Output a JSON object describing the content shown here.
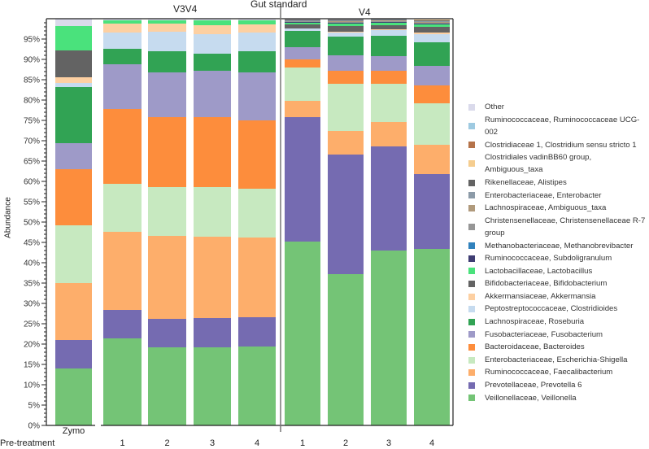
{
  "chart_data": {
    "type": "bar",
    "stacked": true,
    "ylabel": "Abundance",
    "ylim": [
      0,
      100
    ],
    "ytick_labels": [
      "0%",
      "5%",
      "10%",
      "15%",
      "20%",
      "25%",
      "30%",
      "35%",
      "40%",
      "45%",
      "50%",
      "55%",
      "60%",
      "65%",
      "70%",
      "75%",
      "80%",
      "85%",
      "90%",
      "95%"
    ],
    "group_labels": {
      "top_center": "Gut standard",
      "v3v4": "V3V4",
      "v4": "V4"
    },
    "row_label": "Pre-treatment",
    "categories": [
      "Zymo",
      "1",
      "2",
      "3",
      "4",
      "1",
      "2",
      "3",
      "4"
    ],
    "series": [
      {
        "name": "Veillonellaceae, Veillonella",
        "color": "#74c476",
        "values": [
          14,
          21.4,
          19.2,
          19.2,
          19.4,
          45.2,
          37.2,
          43,
          43.4
        ]
      },
      {
        "name": "Prevotellaceae, Prevotella 6",
        "color": "#756bb1",
        "values": [
          7,
          7,
          7,
          7.2,
          7.2,
          30.6,
          29.4,
          25.6,
          18.4
        ]
      },
      {
        "name": "Ruminococcaceae, Faecalibacterium",
        "color": "#fdae6b",
        "values": [
          14,
          19.2,
          20.4,
          20,
          19.6,
          4,
          5.8,
          6,
          7.2
        ]
      },
      {
        "name": "Enterobacteriaceae, Escherichia-Shigella",
        "color": "#c7e9c0",
        "values": [
          14.2,
          11.8,
          12,
          12.2,
          12,
          8.2,
          11.6,
          9.4,
          10.2
        ]
      },
      {
        "name": "Bacteroidaceae, Bacteroides",
        "color": "#fd8d3c",
        "values": [
          13.8,
          18.4,
          17.2,
          17.2,
          16.8,
          2,
          3.2,
          3.2,
          4.4
        ]
      },
      {
        "name": "Fusobacteriaceae, Fusobacterium",
        "color": "#9e9ac8",
        "values": [
          6.4,
          11,
          11,
          11.4,
          11.8,
          3,
          3.8,
          3.6,
          4.8
        ]
      },
      {
        "name": "Lachnospiraceae, Roseburia",
        "color": "#31a354",
        "values": [
          13.8,
          3.8,
          5.2,
          4.2,
          5.2,
          4,
          4.6,
          5,
          5.8
        ]
      },
      {
        "name": "Peptostreptococcaceae, Clostridioides",
        "color": "#c6dbef",
        "values": [
          1,
          4,
          4.8,
          4.8,
          4.6,
          0.6,
          1,
          1.4,
          2
        ]
      },
      {
        "name": "Akkermansiaceae, Akkermansia",
        "color": "#fdd0a2",
        "values": [
          1.4,
          2.2,
          2,
          2.2,
          2,
          0,
          0.2,
          0.2,
          0.4
        ]
      },
      {
        "name": "Bifidobacteriaceae, Bifidobacterium",
        "color": "#636363",
        "values": [
          6.6,
          0,
          0,
          0,
          0,
          1,
          1.4,
          1,
          1.4
        ]
      },
      {
        "name": "Lactobacillaceae, Lactobacillus",
        "color": "#4ae27c",
        "values": [
          6,
          0.8,
          0.8,
          1.2,
          1,
          0.4,
          0.6,
          0.6,
          0.6
        ]
      },
      {
        "name": "Ruminococcaceae, Subdoligranulum",
        "color": "#3f3d73",
        "values": [
          0,
          0,
          0,
          0,
          0,
          0.2,
          0.2,
          0.2,
          0.2
        ]
      },
      {
        "name": "Methanobacteriaceae, Methanobrevibacter",
        "color": "#3182bd",
        "values": [
          0,
          0,
          0,
          0,
          0,
          0,
          0,
          0,
          0
        ]
      },
      {
        "name": "Christensenellaceae, Christensenellaceae R-7 group",
        "color": "#969696",
        "values": [
          0,
          0,
          0,
          0,
          0,
          0.2,
          0.2,
          0.2,
          0.2
        ]
      },
      {
        "name": "Lachnospiraceae, Ambiguous_taxa",
        "color": "#b09a7c",
        "values": [
          0,
          0,
          0,
          0,
          0,
          0,
          0.2,
          0.2,
          0.2
        ]
      },
      {
        "name": "Enterobacteriaceae, Enterobacter",
        "color": "#8c9ba8",
        "values": [
          0,
          0,
          0,
          0,
          0,
          0.2,
          0.2,
          0.2,
          0.2
        ]
      },
      {
        "name": "Rikenellaceae, Alistipes",
        "color": "#636363",
        "values": [
          0,
          0,
          0,
          0,
          0,
          0.2,
          0.2,
          0.2,
          0.2
        ]
      },
      {
        "name": "Clostridiales vadinBB60 group, Ambiguous_taxa",
        "color": "#f5cd8f",
        "values": [
          0,
          0,
          0,
          0,
          0,
          0,
          0,
          0,
          0.2
        ]
      },
      {
        "name": "Clostridiaceae 1, Clostridium sensu stricto 1",
        "color": "#b5734a",
        "values": [
          0,
          0,
          0,
          0,
          0,
          0,
          0,
          0,
          0
        ]
      },
      {
        "name": "Ruminococcaceae, Ruminococcaceae UCG-002",
        "color": "#9ecae1",
        "values": [
          0,
          0,
          0,
          0,
          0,
          0,
          0,
          0,
          0
        ]
      },
      {
        "name": "Other",
        "color": "#dadaeb",
        "values": [
          1.8,
          0.4,
          0.4,
          0.4,
          0.4,
          0.2,
          0.2,
          0,
          0.2
        ]
      }
    ]
  }
}
